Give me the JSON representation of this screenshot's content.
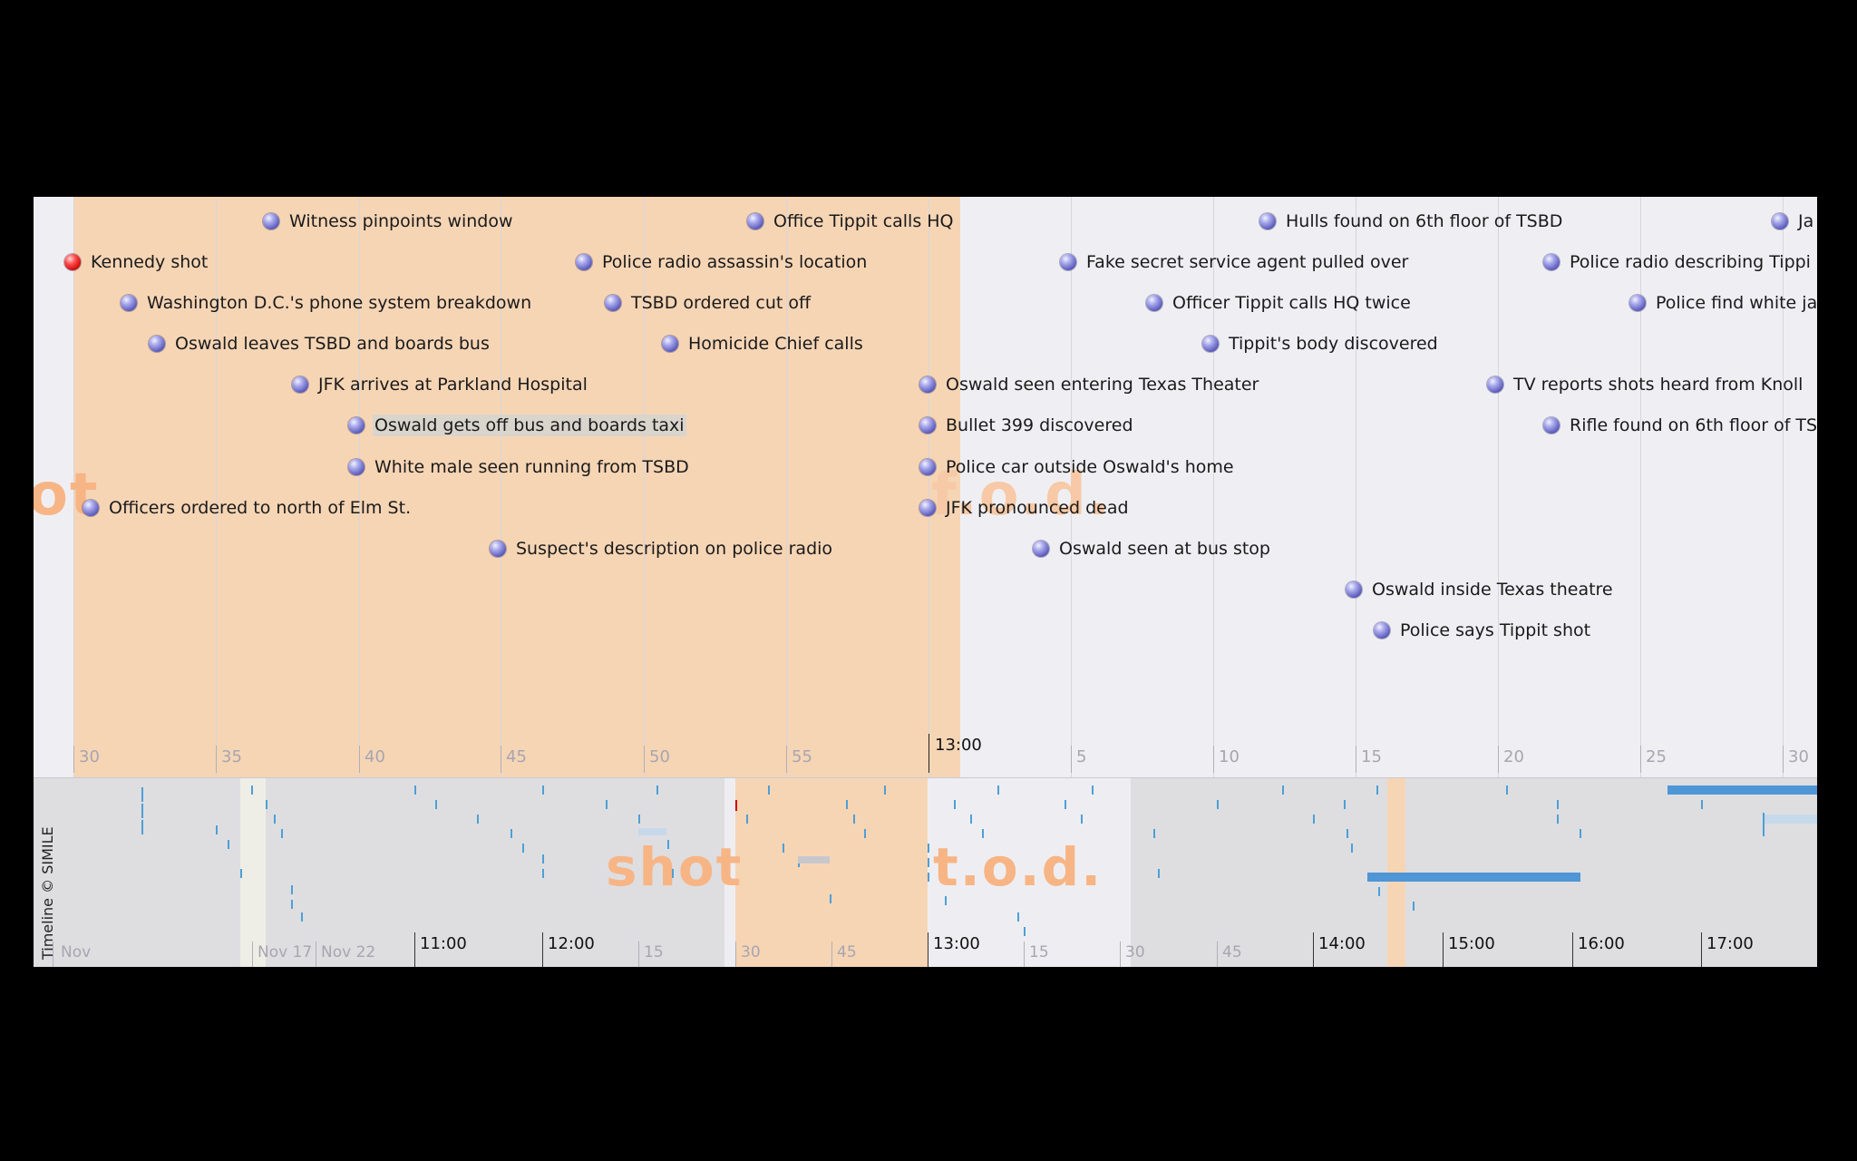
{
  "credit": "Timeline © SIMILE",
  "highlight_labels": {
    "shot": "shot",
    "tod": "t.o.d.",
    "shot_partial": "ot",
    "tod_partial": "f.o.d."
  },
  "detail_ticks": {
    "minor": [
      "30",
      "35",
      "40",
      "45",
      "50",
      "55",
      "5",
      "10",
      "15",
      "20",
      "25",
      "30"
    ],
    "major": [
      "13:00"
    ]
  },
  "overview_ticks": {
    "minor": [
      "Nov",
      "Nov 17",
      "Nov 22",
      "15",
      "30",
      "45",
      "15",
      "30",
      "45"
    ],
    "major": [
      "11:00",
      "12:00",
      "13:00",
      "14:00",
      "15:00",
      "16:00",
      "17:00"
    ]
  },
  "events": [
    {
      "label": "Kennedy shot",
      "color": "#d00000"
    },
    {
      "label": "Witness pinpoints window"
    },
    {
      "label": "Washington D.C.'s phone system breakdown"
    },
    {
      "label": "Oswald leaves TSBD and boards bus"
    },
    {
      "label": "JFK arrives at Parkland Hospital"
    },
    {
      "label": "Oswald gets off bus and boards taxi"
    },
    {
      "label": "White male seen running from TSBD"
    },
    {
      "label": "Officers ordered to north of Elm St."
    },
    {
      "label": "Suspect's description on police radio"
    },
    {
      "label": "Police radio assassin's location"
    },
    {
      "label": "TSBD ordered cut off"
    },
    {
      "label": "Homicide Chief calls"
    },
    {
      "label": "Office Tippit calls HQ"
    },
    {
      "label": "Oswald seen entering Texas Theater"
    },
    {
      "label": "Bullet 399 discovered"
    },
    {
      "label": "Police car outside Oswald's home"
    },
    {
      "label": "JFK pronounced dead"
    },
    {
      "label": "Oswald seen at bus stop"
    },
    {
      "label": "Fake secret service agent pulled over"
    },
    {
      "label": "Officer Tippit calls HQ twice"
    },
    {
      "label": "Tippit's body discovered"
    },
    {
      "label": "Hulls found on 6th floor of TSBD"
    },
    {
      "label": "Oswald inside Texas theatre"
    },
    {
      "label": "Police says Tippit shot"
    },
    {
      "label": "TV reports shots heard from Knoll"
    },
    {
      "label": "Rifle found on 6th floor of TS"
    },
    {
      "label": "Police radio describing Tippi"
    },
    {
      "label": "Police find white ja"
    },
    {
      "label": "Ja"
    }
  ],
  "selected_event": "Oswald gets off bus and boards taxi",
  "colors": {
    "highlight": "#f6d5b5",
    "band_bg": "#efeff3",
    "overview_bg": "#dedee1",
    "event_dot": "#5656b8",
    "overview_mark": "#4e9fd6"
  }
}
